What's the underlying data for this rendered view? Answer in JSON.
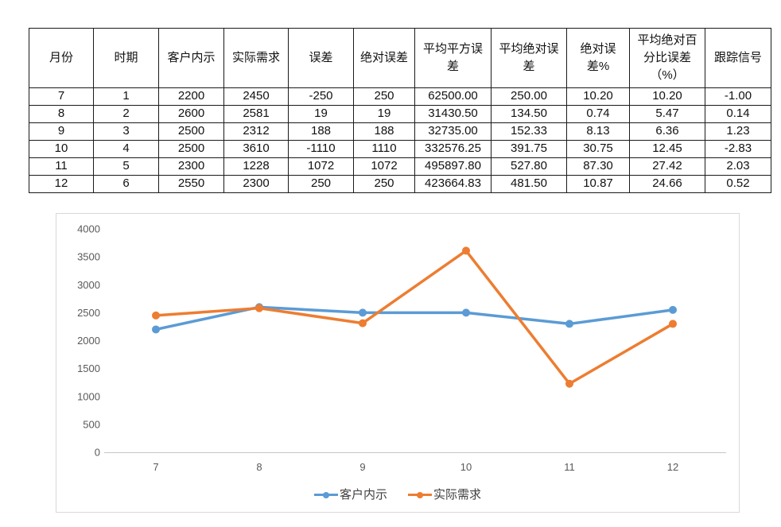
{
  "table": {
    "columns": [
      "月份",
      "时期",
      "客户内示",
      "实际需求",
      "误差",
      "绝对误差",
      "平均平方误差",
      "平均绝对误差",
      "绝对误差%",
      "平均绝对百分比误差（%）",
      "跟踪信号"
    ],
    "rows": [
      [
        "7",
        "1",
        "2200",
        "2450",
        "-250",
        "250",
        "62500.00",
        "250.00",
        "10.20",
        "10.20",
        "-1.00"
      ],
      [
        "8",
        "2",
        "2600",
        "2581",
        "19",
        "19",
        "31430.50",
        "134.50",
        "0.74",
        "5.47",
        "0.14"
      ],
      [
        "9",
        "3",
        "2500",
        "2312",
        "188",
        "188",
        "32735.00",
        "152.33",
        "8.13",
        "6.36",
        "1.23"
      ],
      [
        "10",
        "4",
        "2500",
        "3610",
        "-1110",
        "1110",
        "332576.25",
        "391.75",
        "30.75",
        "12.45",
        "-2.83"
      ],
      [
        "11",
        "5",
        "2300",
        "1228",
        "1072",
        "1072",
        "495897.80",
        "527.80",
        "87.30",
        "27.42",
        "2.03"
      ],
      [
        "12",
        "6",
        "2550",
        "2300",
        "250",
        "250",
        "423664.83",
        "481.50",
        "10.87",
        "24.66",
        "0.52"
      ]
    ]
  },
  "chart_data": {
    "type": "line",
    "x": [
      "7",
      "8",
      "9",
      "10",
      "11",
      "12"
    ],
    "series": [
      {
        "name": "客户内示",
        "color": "#5B9BD5",
        "values": [
          2200,
          2600,
          2500,
          2500,
          2300,
          2550
        ]
      },
      {
        "name": "实际需求",
        "color": "#ED7D31",
        "values": [
          2450,
          2581,
          2312,
          3610,
          1228,
          2300
        ]
      }
    ],
    "title": "",
    "xlabel": "",
    "ylabel": "",
    "ylim": [
      0,
      4000
    ],
    "ytick_step": 500,
    "grid": false,
    "legend_position": "bottom",
    "axis_color": "#c6c6c6",
    "tick_label_color": "#595959"
  }
}
